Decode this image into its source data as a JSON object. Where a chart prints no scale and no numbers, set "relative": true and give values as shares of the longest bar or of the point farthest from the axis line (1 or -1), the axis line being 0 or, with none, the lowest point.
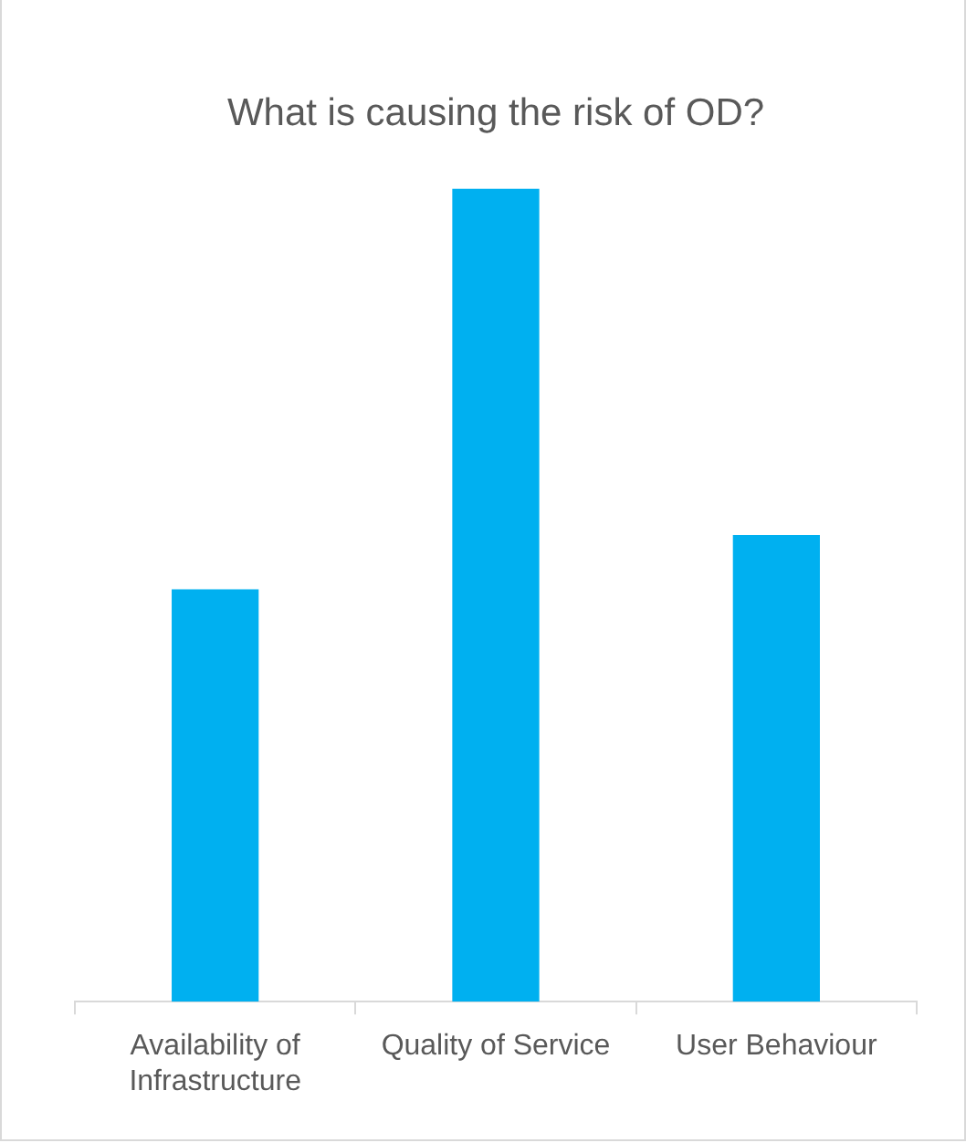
{
  "chart_data": {
    "type": "bar",
    "title": "What is causing the risk of OD?",
    "categories": [
      "Availability of Infrastructure",
      "Quality of Service",
      "User Behaviour"
    ],
    "values": [
      0.507,
      1,
      0.574
    ],
    "color": "#00b0f0",
    "relative": true,
    "grid": false,
    "legend": false
  }
}
